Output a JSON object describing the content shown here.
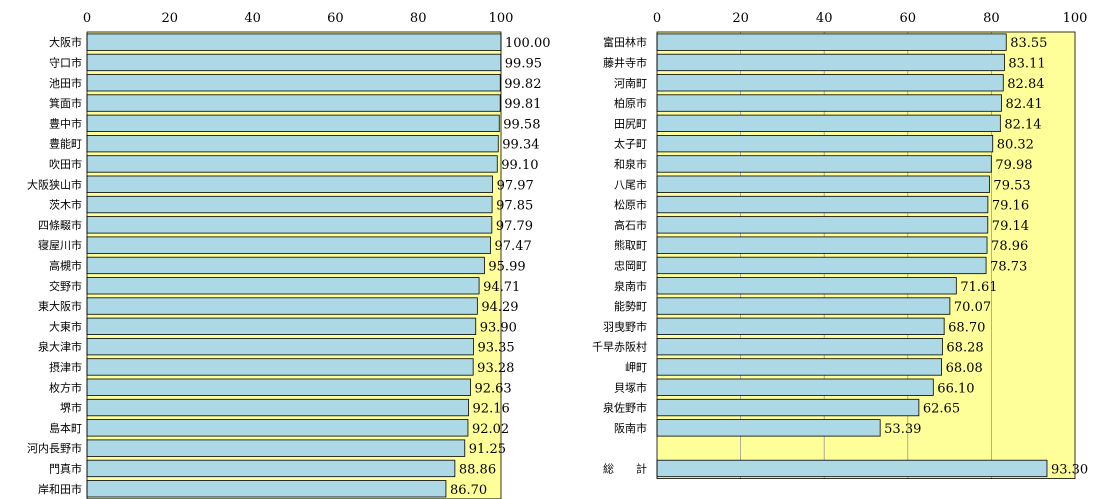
{
  "chart_data": [
    {
      "type": "bar",
      "orientation": "horizontal",
      "title": "",
      "xlim": [
        0,
        100
      ],
      "xticks": [
        0,
        20,
        40,
        60,
        80,
        100
      ],
      "categories": [
        "大阪市",
        "守口市",
        "池田市",
        "箕面市",
        "豊中市",
        "豊能町",
        "吹田市",
        "大阪狭山市",
        "茨木市",
        "四條畷市",
        "寝屋川市",
        "高槻市",
        "交野市",
        "東大阪市",
        "大東市",
        "泉大津市",
        "摂津市",
        "枚方市",
        "堺市",
        "島本町",
        "河内長野市",
        "門真市",
        "岸和田市"
      ],
      "values": [
        "100.00",
        "99.95",
        "99.82",
        "99.81",
        "99.58",
        "99.34",
        "99.10",
        "97.97",
        "97.85",
        "97.79",
        "97.47",
        "95.99",
        "94.71",
        "94.29",
        "93.90",
        "93.35",
        "93.28",
        "92.63",
        "92.16",
        "92.02",
        "91.25",
        "88.86",
        "86.70"
      ],
      "colors": {
        "bar": "#add8e6",
        "remainder": "#ffff99",
        "stroke": "#000000"
      }
    },
    {
      "type": "bar",
      "orientation": "horizontal",
      "xlim": [
        0,
        100
      ],
      "xticks": [
        0,
        20,
        40,
        60,
        80,
        100
      ],
      "categories": [
        "富田林市",
        "藤井寺市",
        "河南町",
        "柏原市",
        "田尻町",
        "太子町",
        "和泉市",
        "八尾市",
        "松原市",
        "高石市",
        "熊取町",
        "忠岡町",
        "泉南市",
        "能勢町",
        "羽曳野市",
        "千早赤阪村",
        "岬町",
        "貝塚市",
        "泉佐野市",
        "阪南市",
        "",
        "総　　計"
      ],
      "values": [
        "83.55",
        "83.11",
        "82.84",
        "82.41",
        "82.14",
        "80.32",
        "79.98",
        "79.53",
        "79.16",
        "79.14",
        "78.96",
        "78.73",
        "71.61",
        "70.07",
        "68.70",
        "68.28",
        "68.08",
        "66.10",
        "62.65",
        "53.39",
        "",
        "93.30"
      ],
      "grid": true,
      "colors": {
        "bar": "#add8e6",
        "remainder": "#ffff99",
        "stroke": "#000000",
        "grid": "#999999"
      }
    }
  ]
}
